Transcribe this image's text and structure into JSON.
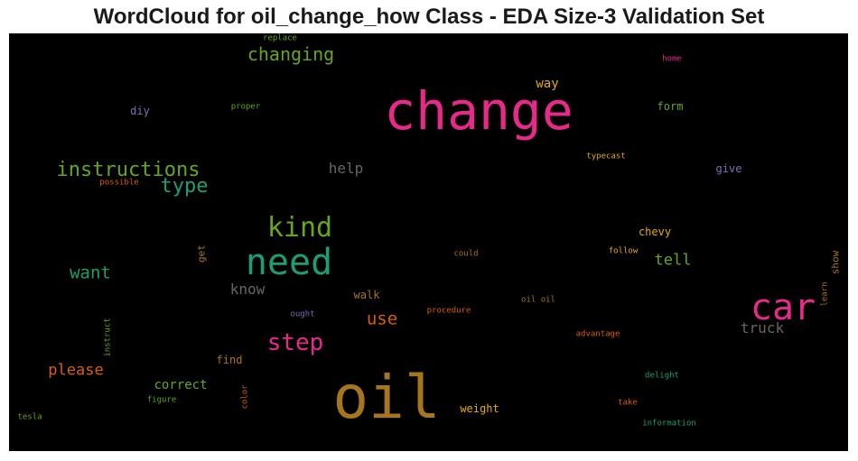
{
  "title": "WordCloud for oil_change_how Class - EDA Size-3 Validation Set",
  "words": [
    {
      "text": "change",
      "color": "#e7298a"
    },
    {
      "text": "oil",
      "color": "#a6761d"
    },
    {
      "text": "need",
      "color": "#1b9e77"
    },
    {
      "text": "car",
      "color": "#e7298a"
    },
    {
      "text": "kind",
      "color": "#66a61e"
    },
    {
      "text": "instructions",
      "color": "#66a61e"
    },
    {
      "text": "step",
      "color": "#e7298a"
    },
    {
      "text": "type",
      "color": "#1b9e77"
    },
    {
      "text": "changing",
      "color": "#66a61e"
    },
    {
      "text": "want",
      "color": "#1b9e77"
    },
    {
      "text": "please",
      "color": "#d95f02"
    },
    {
      "text": "use",
      "color": "#d95f02"
    },
    {
      "text": "help",
      "color": "#666666"
    },
    {
      "text": "know",
      "color": "#666666"
    },
    {
      "text": "tell",
      "color": "#66a61e"
    },
    {
      "text": "truck",
      "color": "#666666"
    },
    {
      "text": "correct",
      "color": "#66a61e"
    },
    {
      "text": "way",
      "color": "#e6ab02"
    },
    {
      "text": "chevy",
      "color": "#e6ab02"
    },
    {
      "text": "walk",
      "color": "#a6761d"
    },
    {
      "text": "find",
      "color": "#a6761d"
    },
    {
      "text": "weight",
      "color": "#e6ab02"
    },
    {
      "text": "form",
      "color": "#66a61e"
    },
    {
      "text": "give",
      "color": "#7570b3"
    },
    {
      "text": "diy",
      "color": "#7570b3"
    },
    {
      "text": "get",
      "color": "#a6761d"
    },
    {
      "text": "show",
      "color": "#a6761d"
    },
    {
      "text": "replace",
      "color": "#66a61e"
    },
    {
      "text": "home",
      "color": "#e7298a"
    },
    {
      "text": "proper",
      "color": "#66a61e"
    },
    {
      "text": "typecast",
      "color": "#e6ab02"
    },
    {
      "text": "possible",
      "color": "#d95f02"
    },
    {
      "text": "could",
      "color": "#a6761d"
    },
    {
      "text": "follow",
      "color": "#e6ab02"
    },
    {
      "text": "learn",
      "color": "#a6761d"
    },
    {
      "text": "ought",
      "color": "#7570b3"
    },
    {
      "text": "procedure",
      "color": "#d95f02"
    },
    {
      "text": "oil oil",
      "color": "#a6761d"
    },
    {
      "text": "advantage",
      "color": "#d95f02"
    },
    {
      "text": "instruct",
      "color": "#66a61e"
    },
    {
      "text": "delight",
      "color": "#1b9e77"
    },
    {
      "text": "figure",
      "color": "#66a61e"
    },
    {
      "text": "color",
      "color": "#d95f02"
    },
    {
      "text": "take",
      "color": "#d95f02"
    },
    {
      "text": "tesla",
      "color": "#66a61e"
    },
    {
      "text": "information",
      "color": "#1b9e77"
    }
  ]
}
